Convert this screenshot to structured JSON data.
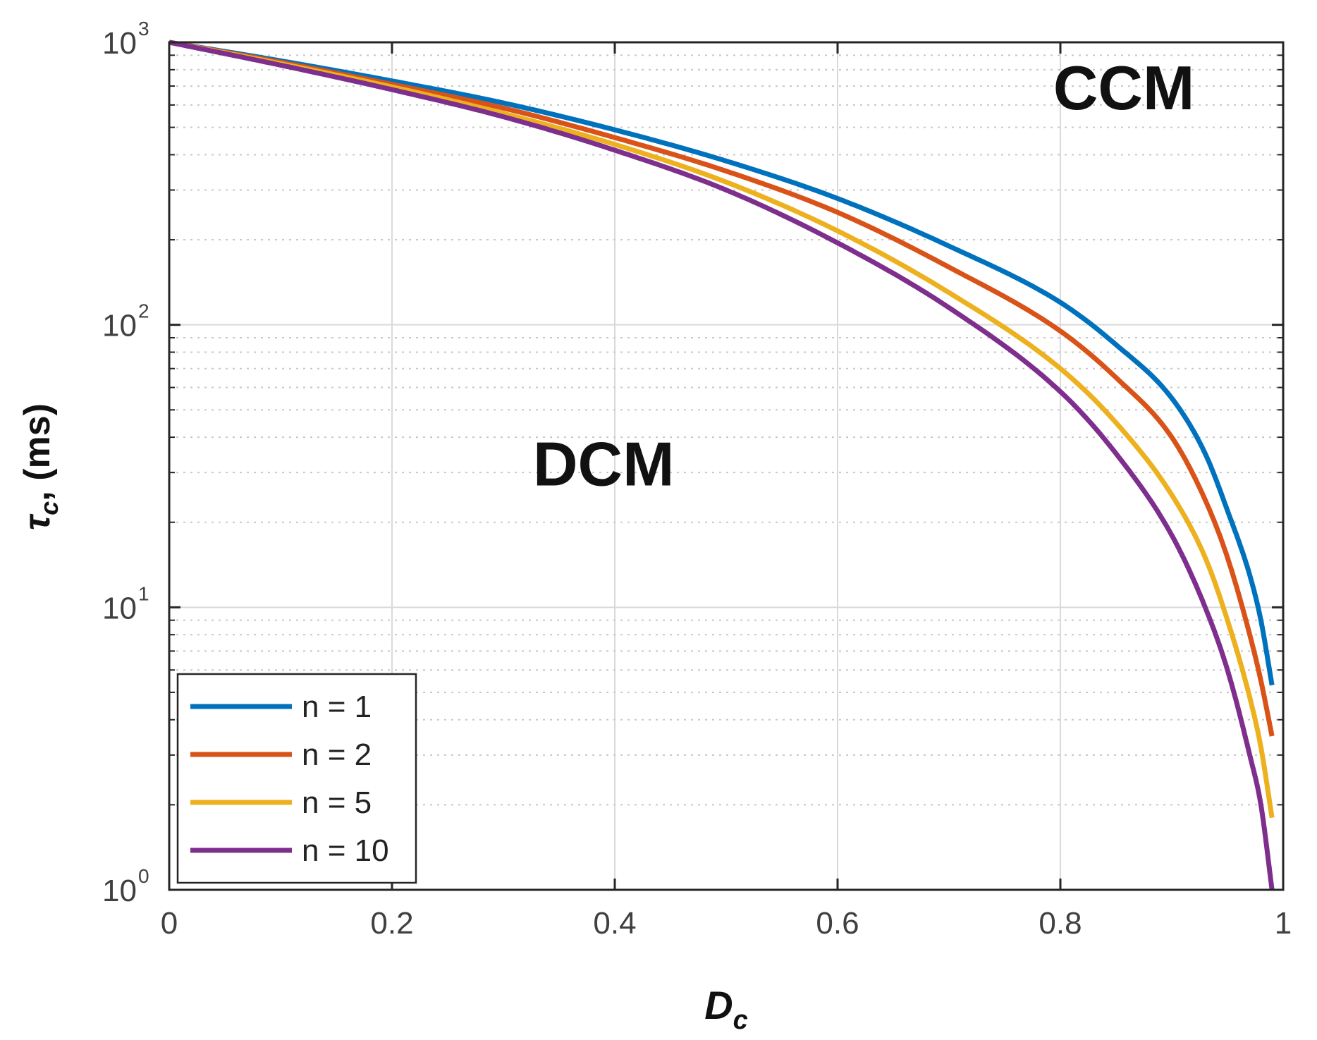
{
  "chart_data": {
    "type": "line",
    "title": "",
    "xlabel": {
      "main": "D",
      "sub": "c"
    },
    "ylabel": {
      "main": "τ",
      "sub": "c",
      "suffix": ", (ms)"
    },
    "xscale": "linear",
    "yscale": "log",
    "xlim": [
      0,
      1
    ],
    "ylim": [
      1,
      1000
    ],
    "grid": true,
    "legend_position": "bottom-left",
    "x_ticks": [
      {
        "value": 0,
        "label": "0"
      },
      {
        "value": 0.2,
        "label": "0.2"
      },
      {
        "value": 0.4,
        "label": "0.4"
      },
      {
        "value": 0.6,
        "label": "0.6"
      },
      {
        "value": 0.8,
        "label": "0.8"
      },
      {
        "value": 1,
        "label": "1"
      }
    ],
    "y_ticks": [
      {
        "value": 1,
        "base": "10",
        "exp": "0"
      },
      {
        "value": 10,
        "base": "10",
        "exp": "1"
      },
      {
        "value": 100,
        "base": "10",
        "exp": "2"
      },
      {
        "value": 1000,
        "base": "10",
        "exp": "3"
      }
    ],
    "x": [
      0,
      0.1,
      0.2,
      0.3,
      0.4,
      0.5,
      0.6,
      0.7,
      0.8,
      0.85,
      0.9,
      0.93,
      0.95,
      0.97,
      0.98,
      0.99
    ],
    "series": [
      {
        "name": "n = 1",
        "color": "#0072BD",
        "values": [
          1000,
          860,
          730,
          610,
          490,
          380,
          280,
          190,
          120,
          85,
          55,
          35,
          22,
          13,
          9,
          5.3
        ]
      },
      {
        "name": "n = 2",
        "color": "#D95319",
        "values": [
          1000,
          850,
          710,
          585,
          460,
          350,
          250,
          160,
          95,
          65,
          40,
          24,
          15,
          8,
          5.5,
          3.5
        ]
      },
      {
        "name": "n = 5",
        "color": "#EDB120",
        "values": [
          1000,
          840,
          695,
          560,
          435,
          320,
          215,
          130,
          70,
          45,
          25,
          15,
          9,
          4.8,
          3.2,
          1.8
        ]
      },
      {
        "name": "n = 10",
        "color": "#7E2F8E",
        "values": [
          1000,
          830,
          680,
          545,
          415,
          300,
          195,
          115,
          58,
          35,
          18,
          10,
          6,
          3,
          2,
          1.0
        ]
      }
    ],
    "annotations": [
      {
        "text": "CCM",
        "x": 0.857,
        "y": 580
      },
      {
        "text": "DCM",
        "x": 0.39,
        "y": 27
      }
    ]
  }
}
